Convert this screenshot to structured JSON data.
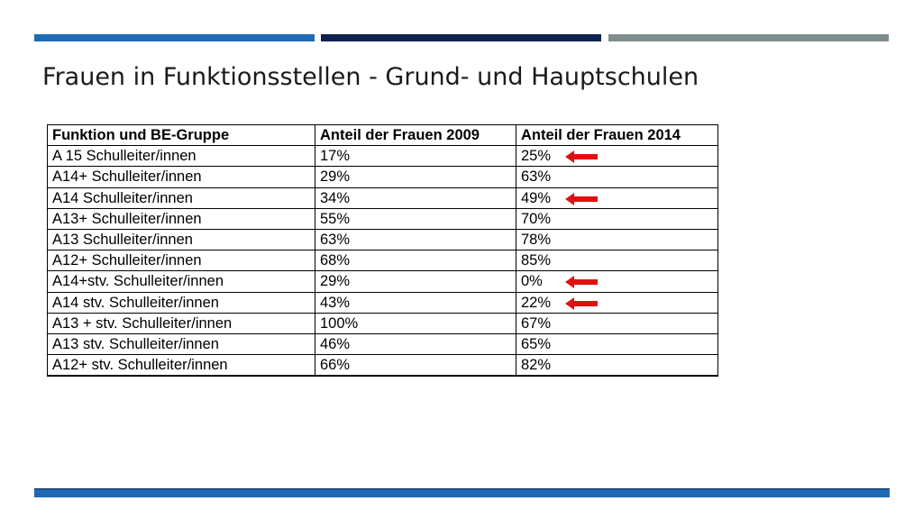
{
  "slide": {
    "title": "Frauen in Funktionsstellen - Grund- und Hauptschulen"
  },
  "table": {
    "headers": [
      "Funktion und BE-Gruppe",
      "Anteil der Frauen 2009",
      "Anteil der Frauen 2014"
    ],
    "rows": [
      {
        "funktion": "A 15 Schulleiter/innen",
        "y2009": "17%",
        "y2014": "25%",
        "highlighted": true
      },
      {
        "funktion": "A14+ Schulleiter/innen",
        "y2009": "29%",
        "y2014": "63%",
        "highlighted": false
      },
      {
        "funktion": "A14 Schulleiter/innen",
        "y2009": "34%",
        "y2014": "49%",
        "highlighted": true
      },
      {
        "funktion": "A13+ Schulleiter/innen",
        "y2009": "55%",
        "y2014": "70%",
        "highlighted": false
      },
      {
        "funktion": "A13 Schulleiter/innen",
        "y2009": "63%",
        "y2014": "78%",
        "highlighted": false
      },
      {
        "funktion": "A12+ Schulleiter/innen",
        "y2009": "68%",
        "y2014": "85%",
        "highlighted": false
      },
      {
        "funktion": "A14+stv. Schulleiter/innen",
        "y2009": "29%",
        "y2014": "0%",
        "highlighted": true
      },
      {
        "funktion": "A14 stv. Schulleiter/innen",
        "y2009": "43%",
        "y2014": "22%",
        "highlighted": true
      },
      {
        "funktion": "A13 + stv. Schulleiter/innen",
        "y2009": "100%",
        "y2014": "67%",
        "highlighted": false
      },
      {
        "funktion": "A13 stv. Schulleiter/innen",
        "y2009": "46%",
        "y2014": "65%",
        "highlighted": false
      },
      {
        "funktion": "A12+ stv. Schulleiter/innen",
        "y2009": "66%",
        "y2014": "82%",
        "highlighted": false
      }
    ]
  },
  "icons": {
    "highlight_arrow": "left-arrow-icon"
  },
  "colors": {
    "bar_blue": "#1f6ab5",
    "bar_navy": "#0f2350",
    "bar_gray": "#7f8c8d",
    "arrow_red": "#e01010"
  }
}
